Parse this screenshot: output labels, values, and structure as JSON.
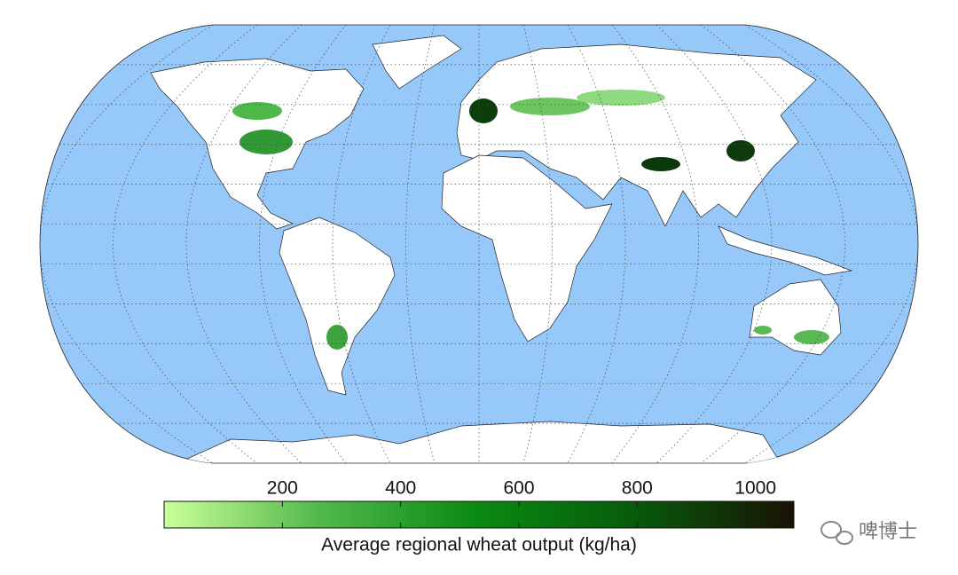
{
  "colorbar": {
    "label": "Average regional wheat output (kg/ha)",
    "range": [
      0,
      1065
    ],
    "ticks": [
      200,
      400,
      600,
      800,
      1000
    ],
    "colors": [
      "#ccff99",
      "#4fb84a",
      "#0a8a12",
      "#075a0a",
      "#1a1205"
    ]
  },
  "watermark": "啤博士"
}
